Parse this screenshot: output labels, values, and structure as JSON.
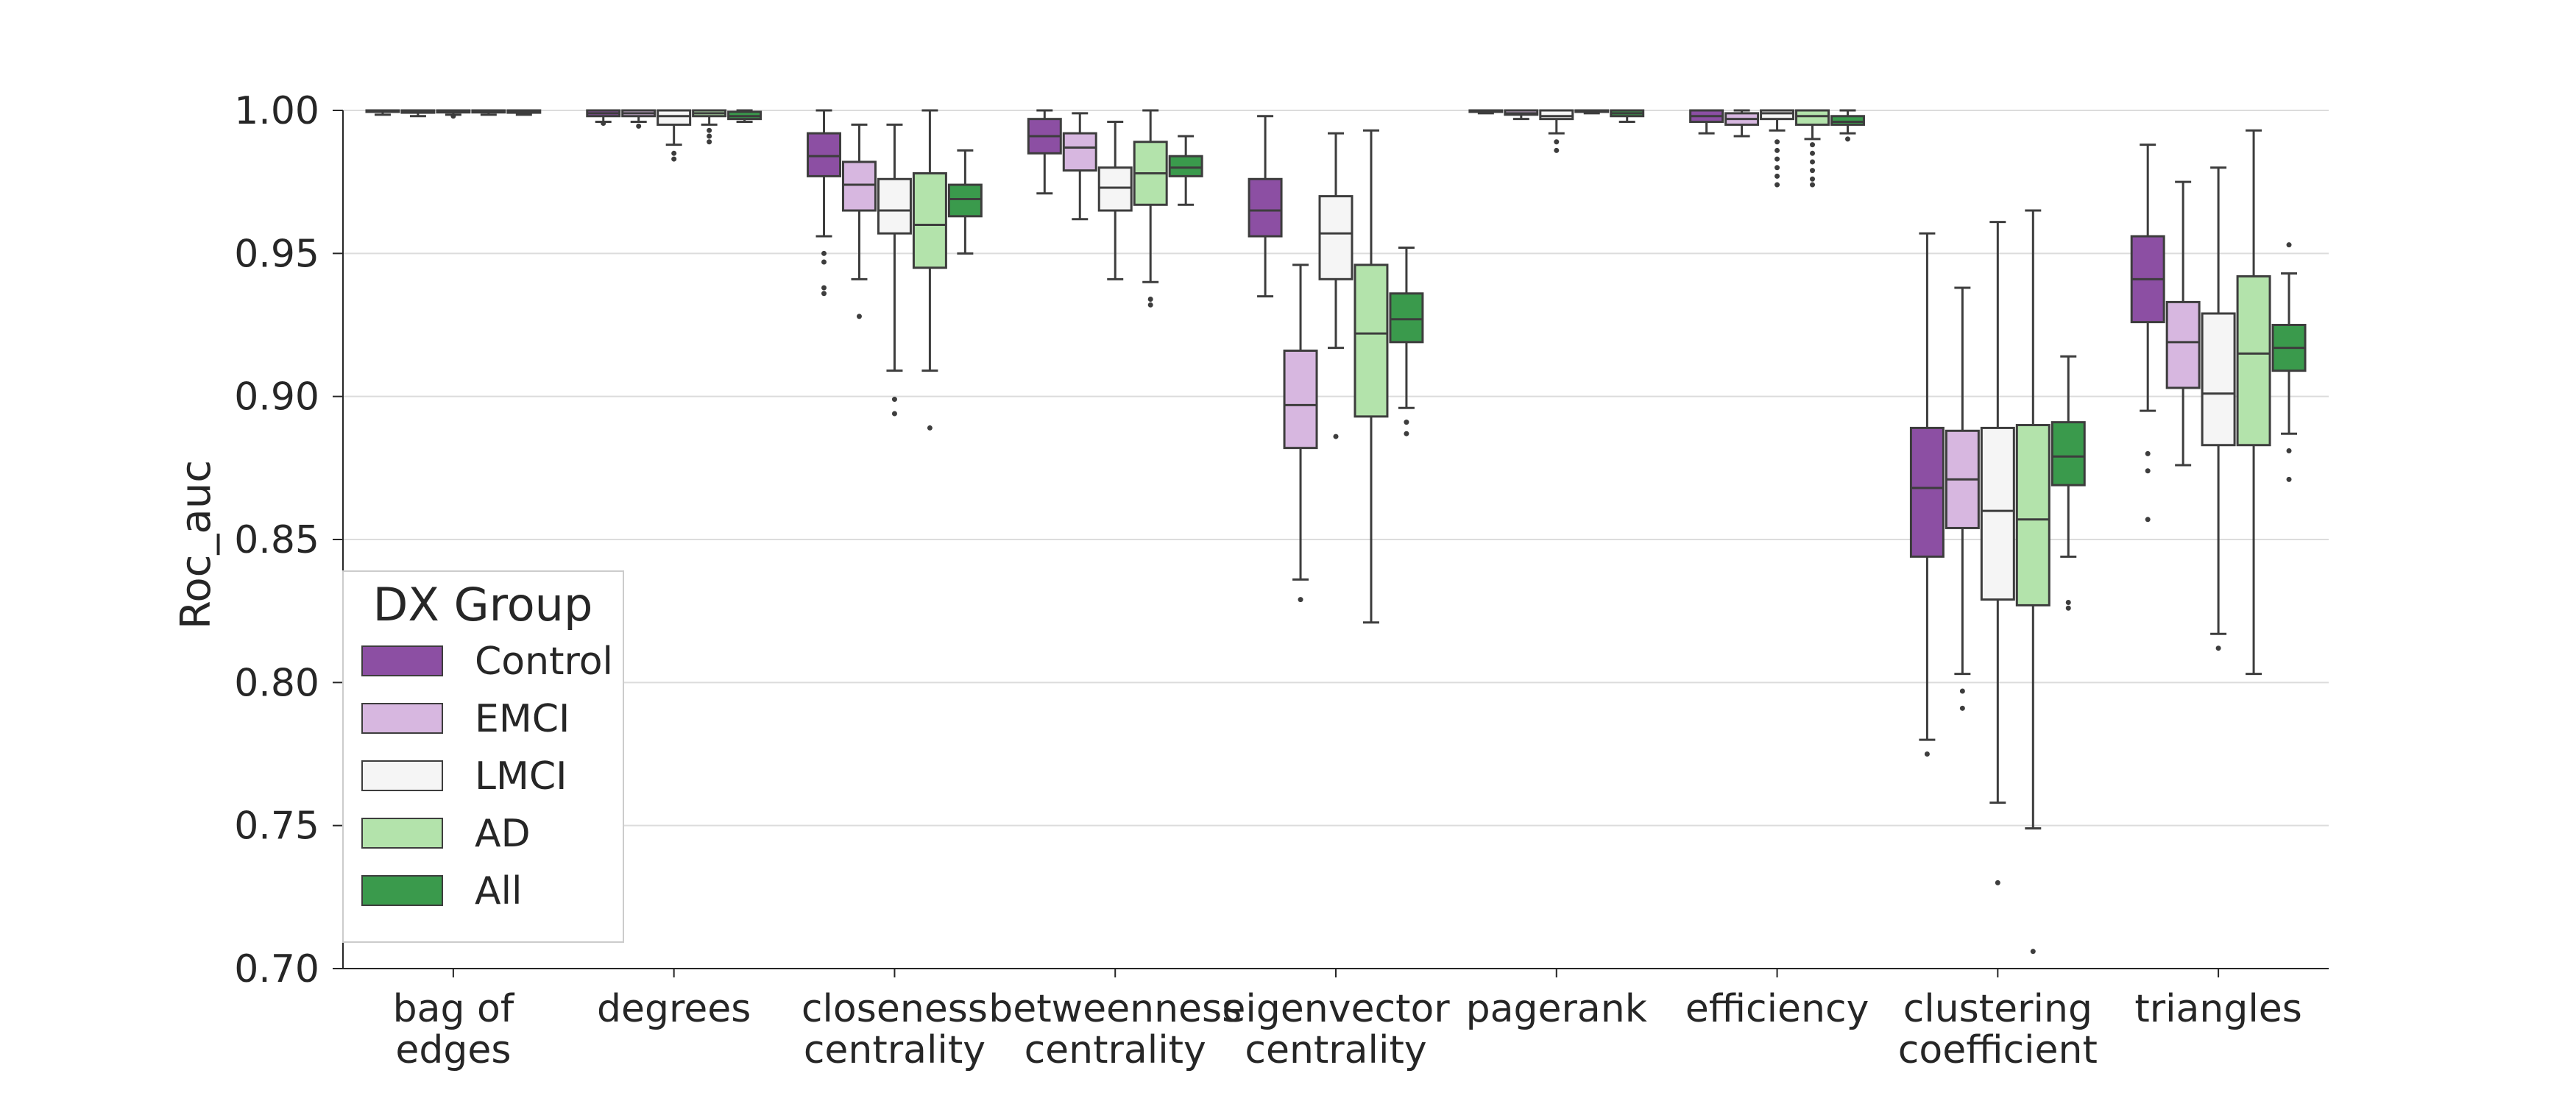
{
  "chart_data": {
    "type": "box",
    "title": "",
    "xlabel": "",
    "ylabel": "Roc_auc",
    "ylim": [
      0.7,
      1.0
    ],
    "yticks": [
      "0.70",
      "0.75",
      "0.80",
      "0.85",
      "0.90",
      "0.95",
      "1.00"
    ],
    "grid": "horizontal",
    "categories": [
      [
        "bag of",
        "edges"
      ],
      [
        "degrees"
      ],
      [
        "closeness",
        "centrality"
      ],
      [
        "betweenness",
        "centrality"
      ],
      [
        "eigenvector",
        "centrality"
      ],
      [
        "pagerank"
      ],
      [
        "efficiency"
      ],
      [
        "clustering",
        "coefficient"
      ],
      [
        "triangles"
      ]
    ],
    "legend": {
      "title": "DX Group",
      "position": "lower-left",
      "entries": [
        "Control",
        "EMCI",
        "LMCI",
        "AD",
        "All"
      ]
    },
    "colors": {
      "Control": "#8c4fa3",
      "EMCI": "#d7b7e0",
      "LMCI": "#f5f5f5",
      "AD": "#b3e3ab",
      "All": "#3a9a4c",
      "edge": "#3d3d3d",
      "grid": "#dcdcdc"
    },
    "series": [
      {
        "name": "Control",
        "boxes": [
          {
            "q1": 0.9995,
            "median": 0.9998,
            "q3": 1.0,
            "whislo": 0.9985,
            "whishi": 1.0,
            "fliers": []
          },
          {
            "q1": 0.998,
            "median": 0.999,
            "q3": 1.0,
            "whislo": 0.996,
            "whishi": 1.0,
            "fliers": [
              0.9955
            ]
          },
          {
            "q1": 0.977,
            "median": 0.984,
            "q3": 0.992,
            "whislo": 0.956,
            "whishi": 1.0,
            "fliers": [
              0.95,
              0.947,
              0.938,
              0.936
            ]
          },
          {
            "q1": 0.985,
            "median": 0.991,
            "q3": 0.997,
            "whislo": 0.971,
            "whishi": 1.0,
            "fliers": []
          },
          {
            "q1": 0.956,
            "median": 0.965,
            "q3": 0.976,
            "whislo": 0.935,
            "whishi": 0.998,
            "fliers": []
          },
          {
            "q1": 0.9995,
            "median": 1.0,
            "q3": 1.0,
            "whislo": 0.999,
            "whishi": 1.0,
            "fliers": []
          },
          {
            "q1": 0.996,
            "median": 0.998,
            "q3": 1.0,
            "whislo": 0.992,
            "whishi": 1.0,
            "fliers": []
          },
          {
            "q1": 0.844,
            "median": 0.868,
            "q3": 0.889,
            "whislo": 0.78,
            "whishi": 0.957,
            "fliers": [
              0.775
            ]
          },
          {
            "q1": 0.926,
            "median": 0.941,
            "q3": 0.956,
            "whislo": 0.895,
            "whishi": 0.988,
            "fliers": [
              0.88,
              0.874,
              0.857
            ]
          }
        ]
      },
      {
        "name": "EMCI",
        "boxes": [
          {
            "q1": 0.9992,
            "median": 0.9996,
            "q3": 1.0,
            "whislo": 0.998,
            "whishi": 1.0,
            "fliers": []
          },
          {
            "q1": 0.998,
            "median": 0.999,
            "q3": 1.0,
            "whislo": 0.996,
            "whishi": 1.0,
            "fliers": [
              0.9945
            ]
          },
          {
            "q1": 0.965,
            "median": 0.974,
            "q3": 0.982,
            "whislo": 0.941,
            "whishi": 0.995,
            "fliers": [
              0.928
            ]
          },
          {
            "q1": 0.979,
            "median": 0.987,
            "q3": 0.992,
            "whislo": 0.962,
            "whishi": 0.999,
            "fliers": []
          },
          {
            "q1": 0.882,
            "median": 0.897,
            "q3": 0.916,
            "whislo": 0.836,
            "whishi": 0.946,
            "fliers": [
              0.829
            ]
          },
          {
            "q1": 0.9985,
            "median": 0.999,
            "q3": 1.0,
            "whislo": 0.997,
            "whishi": 1.0,
            "fliers": []
          },
          {
            "q1": 0.995,
            "median": 0.997,
            "q3": 0.999,
            "whislo": 0.991,
            "whishi": 1.0,
            "fliers": []
          },
          {
            "q1": 0.854,
            "median": 0.871,
            "q3": 0.888,
            "whislo": 0.803,
            "whishi": 0.938,
            "fliers": [
              0.797,
              0.791
            ]
          },
          {
            "q1": 0.903,
            "median": 0.919,
            "q3": 0.933,
            "whislo": 0.876,
            "whishi": 0.975,
            "fliers": []
          }
        ]
      },
      {
        "name": "LMCI",
        "boxes": [
          {
            "q1": 0.9993,
            "median": 0.9997,
            "q3": 1.0,
            "whislo": 0.9985,
            "whishi": 1.0,
            "fliers": [
              0.998
            ]
          },
          {
            "q1": 0.995,
            "median": 0.998,
            "q3": 1.0,
            "whislo": 0.988,
            "whishi": 1.0,
            "fliers": [
              0.985,
              0.983
            ]
          },
          {
            "q1": 0.957,
            "median": 0.965,
            "q3": 0.976,
            "whislo": 0.909,
            "whishi": 0.995,
            "fliers": [
              0.899,
              0.894
            ]
          },
          {
            "q1": 0.965,
            "median": 0.973,
            "q3": 0.98,
            "whislo": 0.941,
            "whishi": 0.996,
            "fliers": []
          },
          {
            "q1": 0.941,
            "median": 0.957,
            "q3": 0.97,
            "whislo": 0.917,
            "whishi": 0.992,
            "fliers": [
              0.886
            ]
          },
          {
            "q1": 0.997,
            "median": 0.998,
            "q3": 1.0,
            "whislo": 0.992,
            "whishi": 1.0,
            "fliers": [
              0.989,
              0.986
            ]
          },
          {
            "q1": 0.997,
            "median": 0.999,
            "q3": 1.0,
            "whislo": 0.993,
            "whishi": 1.0,
            "fliers": [
              0.989,
              0.986,
              0.983,
              0.98,
              0.977,
              0.974
            ]
          },
          {
            "q1": 0.829,
            "median": 0.86,
            "q3": 0.889,
            "whislo": 0.758,
            "whishi": 0.961,
            "fliers": [
              0.73
            ]
          },
          {
            "q1": 0.883,
            "median": 0.901,
            "q3": 0.929,
            "whislo": 0.817,
            "whishi": 0.98,
            "fliers": [
              0.812
            ]
          }
        ]
      },
      {
        "name": "AD",
        "boxes": [
          {
            "q1": 0.9993,
            "median": 0.9997,
            "q3": 1.0,
            "whislo": 0.9985,
            "whishi": 1.0,
            "fliers": []
          },
          {
            "q1": 0.998,
            "median": 0.999,
            "q3": 1.0,
            "whislo": 0.995,
            "whishi": 1.0,
            "fliers": [
              0.993,
              0.991,
              0.989
            ]
          },
          {
            "q1": 0.945,
            "median": 0.96,
            "q3": 0.978,
            "whislo": 0.909,
            "whishi": 1.0,
            "fliers": [
              0.889
            ]
          },
          {
            "q1": 0.967,
            "median": 0.978,
            "q3": 0.989,
            "whislo": 0.94,
            "whishi": 1.0,
            "fliers": [
              0.934,
              0.932
            ]
          },
          {
            "q1": 0.893,
            "median": 0.922,
            "q3": 0.946,
            "whislo": 0.821,
            "whishi": 0.993,
            "fliers": []
          },
          {
            "q1": 0.9995,
            "median": 1.0,
            "q3": 1.0,
            "whislo": 0.999,
            "whishi": 1.0,
            "fliers": []
          },
          {
            "q1": 0.995,
            "median": 0.998,
            "q3": 1.0,
            "whislo": 0.99,
            "whishi": 1.0,
            "fliers": [
              0.988,
              0.985,
              0.982,
              0.979,
              0.976,
              0.974
            ]
          },
          {
            "q1": 0.827,
            "median": 0.857,
            "q3": 0.89,
            "whislo": 0.749,
            "whishi": 0.965,
            "fliers": [
              0.706
            ]
          },
          {
            "q1": 0.883,
            "median": 0.915,
            "q3": 0.942,
            "whislo": 0.803,
            "whishi": 0.993,
            "fliers": []
          }
        ]
      },
      {
        "name": "All",
        "boxes": [
          {
            "q1": 0.9992,
            "median": 0.9996,
            "q3": 1.0,
            "whislo": 0.9985,
            "whishi": 1.0,
            "fliers": []
          },
          {
            "q1": 0.997,
            "median": 0.998,
            "q3": 0.9995,
            "whislo": 0.996,
            "whishi": 1.0,
            "fliers": []
          },
          {
            "q1": 0.963,
            "median": 0.969,
            "q3": 0.974,
            "whislo": 0.95,
            "whishi": 0.986,
            "fliers": []
          },
          {
            "q1": 0.977,
            "median": 0.98,
            "q3": 0.984,
            "whislo": 0.967,
            "whishi": 0.991,
            "fliers": []
          },
          {
            "q1": 0.919,
            "median": 0.927,
            "q3": 0.936,
            "whislo": 0.896,
            "whishi": 0.952,
            "fliers": [
              0.891,
              0.887
            ]
          },
          {
            "q1": 0.998,
            "median": 0.999,
            "q3": 1.0,
            "whislo": 0.996,
            "whishi": 1.0,
            "fliers": []
          },
          {
            "q1": 0.995,
            "median": 0.996,
            "q3": 0.998,
            "whislo": 0.992,
            "whishi": 1.0,
            "fliers": [
              0.99
            ]
          },
          {
            "q1": 0.869,
            "median": 0.879,
            "q3": 0.891,
            "whislo": 0.844,
            "whishi": 0.914,
            "fliers": [
              0.828,
              0.826
            ]
          },
          {
            "q1": 0.909,
            "median": 0.917,
            "q3": 0.925,
            "whislo": 0.887,
            "whishi": 0.943,
            "fliers": [
              0.953,
              0.881,
              0.871
            ]
          }
        ]
      }
    ]
  }
}
